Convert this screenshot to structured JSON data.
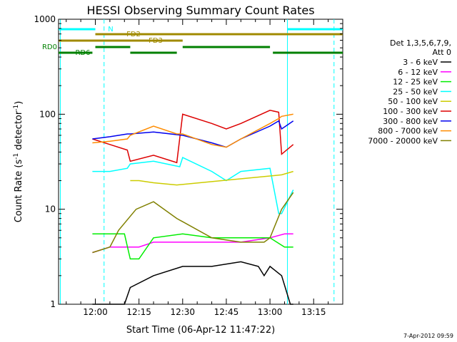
{
  "chart_data": {
    "type": "line",
    "title": "HESSI Observing Summary Count Rates",
    "xlabel": "Start Time (06-Apr-12 11:47:22)",
    "ylabel": "Count Rate (s⁻¹ detector⁻¹)",
    "ylabel_main": "Count Rate (s",
    "ylabel_sup1": "-1",
    "ylabel_mid": " detector",
    "ylabel_sup2": "-1",
    "ylabel_end": ")",
    "y_scale": "log",
    "ylim": [
      1,
      1000
    ],
    "xlim": [
      "11:47:22",
      "13:25:00"
    ],
    "x_ticks": [
      "12:00",
      "12:15",
      "12:30",
      "12:45",
      "13:00",
      "13:15"
    ],
    "y_ticks": [
      "1",
      "10",
      "100",
      "1000"
    ],
    "grid": false,
    "legend_position": "right",
    "legend_header": [
      "Det 1,3,5,6,7,9,",
      "Att 0"
    ],
    "footer": "7-Apr-2012 09:59",
    "legend": [
      {
        "name": "3 - 6 keV",
        "color": "#000000"
      },
      {
        "name": "6 - 12 keV",
        "color": "#ff00ff"
      },
      {
        "name": "12 - 25 keV",
        "color": "#00ee00"
      },
      {
        "name": "25 - 50 keV",
        "color": "#00ffff"
      },
      {
        "name": "50 - 100 keV",
        "color": "#cccc00"
      },
      {
        "name": "100 - 300 keV",
        "color": "#dd0000"
      },
      {
        "name": "300 - 800 keV",
        "color": "#0000ee"
      },
      {
        "name": "800 - 7000 keV",
        "color": "#ff8c00"
      },
      {
        "name": "7000 - 20000 keV",
        "color": "#808000"
      }
    ],
    "series": [
      {
        "name": "3 - 6 keV",
        "color": "#000000",
        "x": [
          "11:59",
          "12:10",
          "12:12",
          "12:20",
          "12:30",
          "12:40",
          "12:50",
          "12:56",
          "12:58",
          "13:00",
          "13:04",
          "13:07",
          "13:08"
        ],
        "values": [
          1,
          1,
          1.5,
          2,
          2.5,
          2.5,
          2.8,
          2.5,
          2,
          2.5,
          2,
          1,
          1
        ]
      },
      {
        "name": "6 - 12 keV",
        "color": "#ff00ff",
        "x": [
          "11:59",
          "12:05",
          "12:10",
          "12:15",
          "12:20",
          "12:30",
          "12:40",
          "12:50",
          "13:00",
          "13:05",
          "13:08"
        ],
        "values": [
          3.5,
          4,
          4,
          4,
          4.5,
          4.5,
          4.5,
          4.5,
          5,
          5.5,
          5.5
        ]
      },
      {
        "name": "12 - 25 keV",
        "color": "#00ee00",
        "x": [
          "11:59",
          "12:05",
          "12:10",
          "12:12",
          "12:15",
          "12:20",
          "12:30",
          "12:40",
          "12:50",
          "13:00",
          "13:05",
          "13:08"
        ],
        "values": [
          5.5,
          5.5,
          5.5,
          3,
          3,
          5,
          5.5,
          5,
          5,
          5,
          4,
          4
        ]
      },
      {
        "name": "25 - 50 keV",
        "color": "#00ffff",
        "x": [
          "11:59",
          "12:05",
          "12:11",
          "12:12",
          "12:20",
          "12:29",
          "12:30",
          "12:40",
          "12:45",
          "12:50",
          "13:00",
          "13:03",
          "13:04",
          "13:08"
        ],
        "values": [
          25,
          25,
          27,
          30,
          32,
          28,
          35,
          25,
          20,
          25,
          27,
          9,
          9,
          16
        ]
      },
      {
        "name": "50 - 100 keV",
        "color": "#cccc00",
        "x": [
          "12:12",
          "12:15",
          "12:20",
          "12:28",
          "13:04",
          "13:08"
        ],
        "values": [
          20,
          20,
          19,
          18,
          23,
          25
        ]
      },
      {
        "name": "100 - 300 keV",
        "color": "#dd0000",
        "x": [
          "11:59",
          "12:05",
          "12:11",
          "12:12",
          "12:20",
          "12:28",
          "12:30",
          "12:40",
          "12:45",
          "12:50",
          "13:00",
          "13:03",
          "13:04",
          "13:08"
        ],
        "values": [
          55,
          48,
          42,
          32,
          37,
          31,
          100,
          80,
          70,
          80,
          110,
          105,
          38,
          48
        ]
      },
      {
        "name": "300 - 800 keV",
        "color": "#0000ee",
        "x": [
          "11:59",
          "12:05",
          "12:11",
          "12:12",
          "12:20",
          "12:30",
          "12:40",
          "12:45",
          "12:50",
          "13:00",
          "13:03",
          "13:04",
          "13:08"
        ],
        "values": [
          55,
          58,
          62,
          62,
          65,
          60,
          50,
          45,
          55,
          75,
          85,
          70,
          85
        ]
      },
      {
        "name": "800 - 7000 keV",
        "color": "#ff8c00",
        "x": [
          "11:59",
          "12:05",
          "12:11",
          "12:12",
          "12:20",
          "12:28",
          "12:30",
          "12:40",
          "12:45",
          "12:50",
          "13:00",
          "13:03",
          "13:04",
          "13:08"
        ],
        "values": [
          50,
          52,
          55,
          60,
          75,
          62,
          62,
          48,
          45,
          55,
          80,
          90,
          95,
          100
        ]
      },
      {
        "name": "7000 - 20000 keV",
        "color": "#808000",
        "x": [
          "11:59",
          "12:05",
          "12:08",
          "12:14",
          "12:20",
          "12:28",
          "12:40",
          "12:50",
          "12:58",
          "13:00",
          "13:04",
          "13:08"
        ],
        "values": [
          3.5,
          4,
          6,
          10,
          12,
          8,
          5,
          4.5,
          4.5,
          5,
          10,
          15
        ]
      }
    ],
    "flag_bars": [
      {
        "label": "N",
        "color": "#00ffff",
        "segments": [
          [
            "11:47:22",
            "12:00"
          ],
          [
            "13:06",
            "13:25"
          ]
        ]
      },
      {
        "label": "FD2",
        "color": "#a08a00",
        "segments": [
          [
            "12:00",
            "13:25"
          ]
        ]
      },
      {
        "label": "FD3",
        "color": "#a08a00",
        "segments": [
          [
            "11:47:22",
            "12:30"
          ]
        ]
      },
      {
        "label": "RD0",
        "color": "#008000",
        "segments": [
          [
            "12:00",
            "12:12"
          ],
          [
            "12:30",
            "13:00"
          ]
        ]
      },
      {
        "label": "RD6",
        "color": "#008000",
        "segments": [
          [
            "11:47:22",
            "11:59"
          ],
          [
            "12:12",
            "12:28"
          ],
          [
            "13:01",
            "13:25"
          ]
        ]
      }
    ],
    "vertical_markers": [
      {
        "time": "11:48",
        "color": "#00ffff",
        "style": "solid"
      },
      {
        "time": "12:03",
        "color": "#00ffff",
        "style": "dashed"
      },
      {
        "time": "13:06",
        "color": "#00ffff",
        "style": "solid"
      },
      {
        "time": "13:22",
        "color": "#00ffff",
        "style": "dashed"
      }
    ]
  }
}
